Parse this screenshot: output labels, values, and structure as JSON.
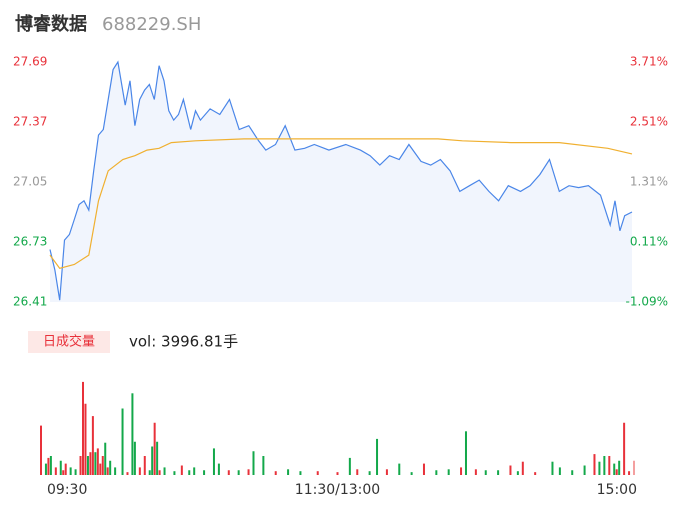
{
  "header": {
    "name": "博睿数据",
    "code": "688229.SH"
  },
  "chart_data": [
    {
      "type": "line",
      "area": true,
      "xlim": [
        0,
        240
      ],
      "ylim": [
        26.41,
        27.69
      ],
      "yticks": [
        27.69,
        27.37,
        27.05,
        26.73,
        26.41
      ],
      "ytick_colors": [
        "#e8313a",
        "#e8313a",
        "#999999",
        "#13a84a",
        "#13a84a"
      ],
      "y2lim": [
        -1.09,
        3.71
      ],
      "y2ticks": [
        {
          "value": 3.71,
          "label": "3.71%"
        },
        {
          "value": 2.51,
          "label": "2.51%"
        },
        {
          "value": 1.31,
          "label": "1.31%"
        },
        {
          "value": 0.11,
          "label": "0.11%"
        },
        {
          "value": -1.09,
          "label": "-1.09%"
        }
      ],
      "series": [
        {
          "color": "#4a86e8",
          "x": [
            0,
            2,
            4,
            6,
            8,
            10,
            12,
            14,
            16,
            18,
            20,
            22,
            24,
            26,
            28,
            31,
            33,
            35,
            37,
            39,
            41,
            43,
            45,
            47,
            49,
            51,
            53,
            55,
            58,
            60,
            62,
            66,
            70,
            74,
            78,
            82,
            86,
            89,
            93,
            97,
            101,
            105,
            109,
            115,
            122,
            128,
            132,
            136,
            140,
            144,
            148,
            153,
            157,
            161,
            165,
            169,
            173,
            177,
            181,
            185,
            189,
            194,
            198,
            202,
            206,
            210,
            214,
            218,
            222,
            227,
            231,
            233,
            235,
            237,
            240
          ],
          "values": [
            26.69,
            26.58,
            26.42,
            26.74,
            26.77,
            26.85,
            26.93,
            26.95,
            26.9,
            27.11,
            27.3,
            27.33,
            27.49,
            27.65,
            27.69,
            27.46,
            27.59,
            27.35,
            27.49,
            27.54,
            27.57,
            27.49,
            27.67,
            27.59,
            27.43,
            27.38,
            27.41,
            27.49,
            27.33,
            27.43,
            27.38,
            27.44,
            27.41,
            27.49,
            27.33,
            27.35,
            27.27,
            27.22,
            27.25,
            27.35,
            27.22,
            27.23,
            27.25,
            27.22,
            27.25,
            27.22,
            27.19,
            27.14,
            27.19,
            27.17,
            27.25,
            27.16,
            27.14,
            27.17,
            27.11,
            27.0,
            27.03,
            27.06,
            27.0,
            26.95,
            27.03,
            27.0,
            27.03,
            27.09,
            27.17,
            27.0,
            27.03,
            27.02,
            27.03,
            26.98,
            26.82,
            26.95,
            26.79,
            26.87,
            26.89
          ]
        },
        {
          "color": "#f0b030",
          "x": [
            0,
            4,
            10,
            16,
            20,
            24,
            30,
            35,
            40,
            45,
            50,
            60,
            80,
            120,
            160,
            170,
            190,
            210,
            230,
            240
          ],
          "values": [
            26.66,
            26.59,
            26.61,
            26.66,
            26.95,
            27.11,
            27.17,
            27.19,
            27.22,
            27.23,
            27.26,
            27.27,
            27.28,
            27.28,
            27.28,
            27.27,
            27.26,
            27.26,
            27.23,
            27.2
          ]
        }
      ]
    },
    {
      "type": "bar",
      "title": "日成交量",
      "subtitle": "vol: 3996.81手",
      "xlim": [
        0,
        240
      ],
      "ylim": [
        0,
        100
      ],
      "xticks": [
        {
          "value": 0,
          "label": "09:30"
        },
        {
          "value": 120,
          "label": "11:30/13:00"
        },
        {
          "value": 240,
          "label": "15:00"
        }
      ],
      "x": [
        0,
        2,
        3,
        4,
        6,
        8,
        9,
        10,
        12,
        14,
        16,
        17,
        18,
        19,
        20,
        21,
        22,
        23,
        24,
        25,
        26,
        27,
        28,
        30,
        33,
        35,
        37,
        38,
        40,
        42,
        44,
        45,
        46,
        47,
        48,
        50,
        54,
        57,
        60,
        62,
        66,
        70,
        72,
        76,
        80,
        84,
        86,
        90,
        95,
        100,
        105,
        112,
        120,
        125,
        128,
        133,
        136,
        140,
        145,
        150,
        155,
        160,
        165,
        170,
        172,
        176,
        180,
        185,
        190,
        193,
        195,
        200,
        207,
        210,
        215,
        220,
        224,
        226,
        228,
        230,
        232,
        233,
        234,
        236,
        238,
        240
      ],
      "values": [
        52,
        12,
        18,
        20,
        8,
        15,
        5,
        12,
        8,
        6,
        20,
        98,
        75,
        20,
        24,
        62,
        24,
        28,
        12,
        20,
        34,
        8,
        15,
        8,
        70,
        3,
        86,
        35,
        8,
        20,
        5,
        30,
        55,
        35,
        5,
        8,
        4,
        10,
        5,
        8,
        5,
        28,
        12,
        5,
        5,
        6,
        25,
        20,
        4,
        6,
        4,
        4,
        3,
        18,
        6,
        4,
        38,
        6,
        12,
        3,
        12,
        5,
        6,
        8,
        46,
        6,
        5,
        5,
        10,
        4,
        14,
        3,
        14,
        8,
        5,
        10,
        22,
        14,
        20,
        20,
        12,
        6,
        15,
        55,
        4,
        15
      ],
      "colors": [
        "#e8313a",
        "#13a84a",
        "#e8313a",
        "#13a84a",
        "#e8313a",
        "#13a84a",
        "#e8313a",
        "#e8313a",
        "#13a84a",
        "#13a84a",
        "#e8313a",
        "#e8313a",
        "#e8313a",
        "#13a84a",
        "#e8313a",
        "#e8313a",
        "#13a84a",
        "#e8313a",
        "#e8313a",
        "#e8313a",
        "#13a84a",
        "#e8313a",
        "#13a84a",
        "#13a84a",
        "#13a84a",
        "#e8313a",
        "#13a84a",
        "#13a84a",
        "#e8313a",
        "#e8313a",
        "#13a84a",
        "#13a84a",
        "#e8313a",
        "#13a84a",
        "#e8313a",
        "#13a84a",
        "#13a84a",
        "#e8313a",
        "#13a84a",
        "#13a84a",
        "#13a84a",
        "#13a84a",
        "#13a84a",
        "#e8313a",
        "#13a84a",
        "#e8313a",
        "#13a84a",
        "#13a84a",
        "#e8313a",
        "#13a84a",
        "#13a84a",
        "#e8313a",
        "#e8313a",
        "#13a84a",
        "#e8313a",
        "#13a84a",
        "#13a84a",
        "#e8313a",
        "#13a84a",
        "#13a84a",
        "#e8313a",
        "#13a84a",
        "#13a84a",
        "#e8313a",
        "#13a84a",
        "#e8313a",
        "#13a84a",
        "#13a84a",
        "#e8313a",
        "#13a84a",
        "#e8313a",
        "#e8313a",
        "#13a84a",
        "#13a84a",
        "#13a84a",
        "#13a84a",
        "#e8313a",
        "#13a84a",
        "#13a84a",
        "#e8313a",
        "#13a84a",
        "#e8313a",
        "#13a84a",
        "#e8313a",
        "#e8313a",
        "#f4a0a0"
      ]
    }
  ]
}
